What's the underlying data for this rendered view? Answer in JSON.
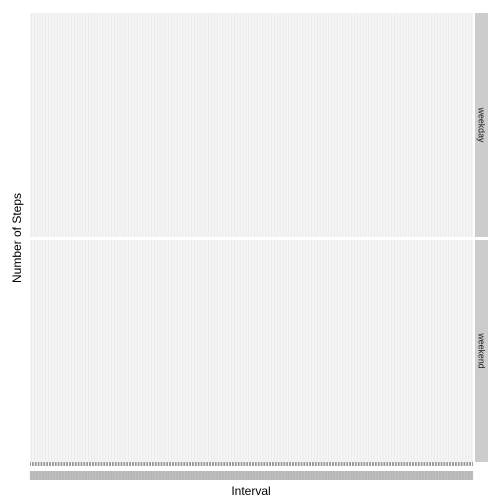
{
  "chart_data": {
    "type": "bar",
    "xlabel": "Interval",
    "ylabel": "Number of Steps",
    "x_axis": "discrete",
    "panels": [
      {
        "strip_label": "weekday"
      },
      {
        "strip_label": "weekend"
      }
    ],
    "category_count": 288,
    "tick_labels_legible": false,
    "series": [],
    "grid": true,
    "colors": {
      "panel_background": "#ebebeb",
      "gridline": "#ffffff",
      "strip_background": "#cccccc",
      "tick": "#333333"
    }
  }
}
